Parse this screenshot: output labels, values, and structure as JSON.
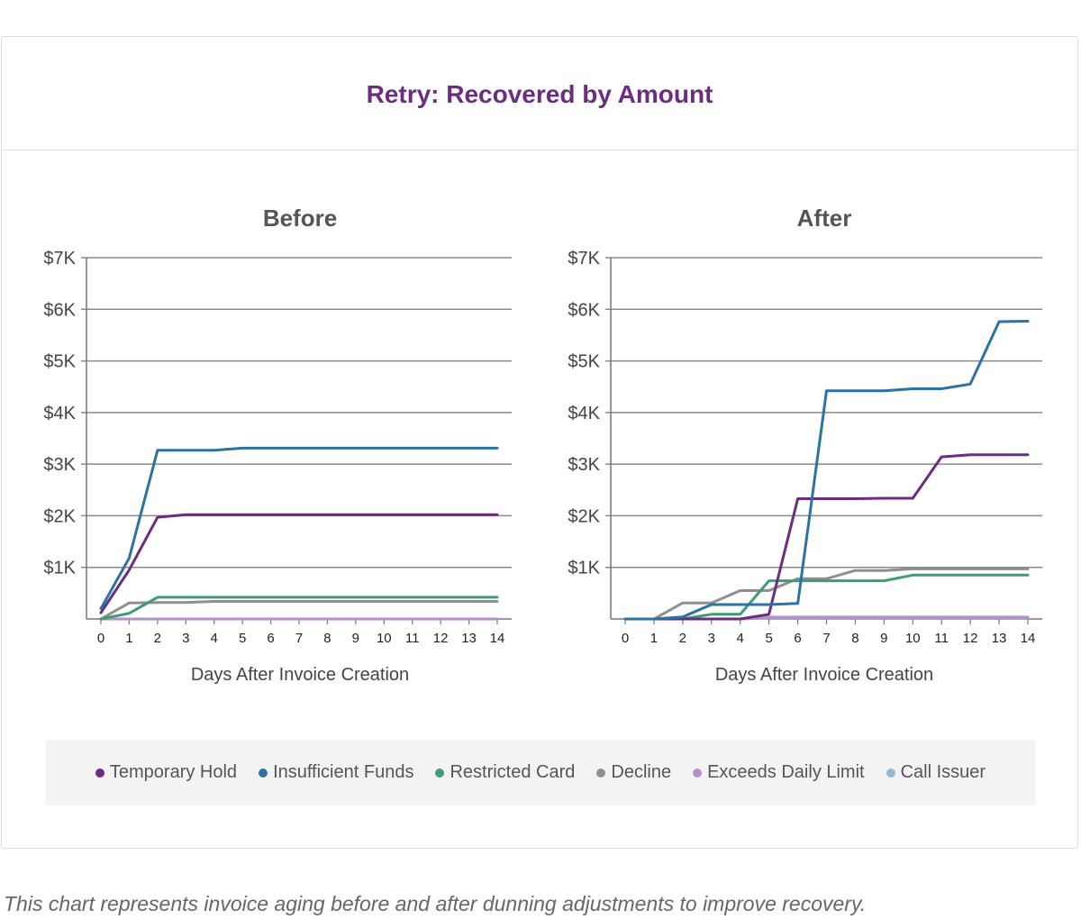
{
  "page": {
    "title": "Retry: Recovered by Amount",
    "caption": "This chart represents invoice aging before and after dunning adjustments to improve recovery."
  },
  "legend": [
    {
      "name": "Temporary Hold",
      "color": "#6b2c82"
    },
    {
      "name": "Insufficient Funds",
      "color": "#2b73a0"
    },
    {
      "name": "Restricted Card",
      "color": "#3f9b72"
    },
    {
      "name": "Decline",
      "color": "#8f8f8f"
    },
    {
      "name": "Exceeds Daily Limit",
      "color": "#b58fc9"
    },
    {
      "name": "Call Issuer",
      "color": "#8fb9d6"
    }
  ],
  "chart_data": [
    {
      "type": "line",
      "title": "Before",
      "xlabel": "Days After Invoice Creation",
      "ylabel": "",
      "x": [
        0,
        1,
        2,
        3,
        4,
        5,
        6,
        7,
        8,
        9,
        10,
        11,
        12,
        13,
        14
      ],
      "ylim": [
        0,
        7000
      ],
      "yticks": [
        1000,
        2000,
        3000,
        4000,
        5000,
        6000,
        7000
      ],
      "ytick_labels": [
        "$1K",
        "$2K",
        "$3K",
        "$4K",
        "$5K",
        "$6K",
        "$7K"
      ],
      "grid": true,
      "series": [
        {
          "name": "Temporary Hold",
          "color": "#6b2c82",
          "values": [
            120,
            950,
            1970,
            2020,
            2020,
            2020,
            2020,
            2020,
            2020,
            2020,
            2020,
            2020,
            2020,
            2020,
            2020
          ]
        },
        {
          "name": "Insufficient Funds",
          "color": "#2b73a0",
          "values": [
            200,
            1180,
            3270,
            3270,
            3270,
            3310,
            3310,
            3310,
            3310,
            3310,
            3310,
            3310,
            3310,
            3310,
            3310
          ]
        },
        {
          "name": "Restricted Card",
          "color": "#3f9b72",
          "values": [
            0,
            110,
            420,
            420,
            420,
            420,
            420,
            420,
            420,
            420,
            420,
            420,
            420,
            420,
            420
          ]
        },
        {
          "name": "Decline",
          "color": "#8f8f8f",
          "values": [
            0,
            310,
            320,
            320,
            340,
            340,
            340,
            340,
            340,
            340,
            340,
            340,
            340,
            340,
            340
          ]
        },
        {
          "name": "Exceeds Daily Limit",
          "color": "#b58fc9",
          "values": [
            0,
            0,
            0,
            0,
            0,
            0,
            0,
            0,
            0,
            0,
            0,
            0,
            0,
            0,
            0
          ]
        },
        {
          "name": "Call Issuer",
          "color": "#8fb9d6",
          "values": [
            0,
            0,
            0,
            0,
            0,
            0,
            0,
            0,
            0,
            0,
            0,
            0,
            0,
            0,
            0
          ]
        }
      ]
    },
    {
      "type": "line",
      "title": "After",
      "xlabel": "Days After Invoice Creation",
      "ylabel": "",
      "x": [
        0,
        1,
        2,
        3,
        4,
        5,
        6,
        7,
        8,
        9,
        10,
        11,
        12,
        13,
        14
      ],
      "ylim": [
        0,
        7000
      ],
      "yticks": [
        1000,
        2000,
        3000,
        4000,
        5000,
        6000,
        7000
      ],
      "ytick_labels": [
        "$1K",
        "$2K",
        "$3K",
        "$4K",
        "$5K",
        "$6K",
        "$7K"
      ],
      "grid": true,
      "series": [
        {
          "name": "Temporary Hold",
          "color": "#6b2c82",
          "values": [
            0,
            0,
            0,
            0,
            0,
            90,
            2330,
            2330,
            2330,
            2340,
            2340,
            3140,
            3180,
            3180,
            3180
          ]
        },
        {
          "name": "Insufficient Funds",
          "color": "#2b73a0",
          "values": [
            0,
            0,
            40,
            280,
            280,
            280,
            300,
            4420,
            4420,
            4420,
            4460,
            4460,
            4550,
            5760,
            5770
          ]
        },
        {
          "name": "Restricted Card",
          "color": "#3f9b72",
          "values": [
            0,
            0,
            0,
            90,
            90,
            740,
            740,
            740,
            740,
            740,
            850,
            850,
            850,
            850,
            850
          ]
        },
        {
          "name": "Decline",
          "color": "#8f8f8f",
          "values": [
            0,
            0,
            310,
            310,
            550,
            550,
            780,
            780,
            940,
            940,
            970,
            970,
            970,
            970,
            970
          ]
        },
        {
          "name": "Exceeds Daily Limit",
          "color": "#b58fc9",
          "values": [
            0,
            0,
            0,
            0,
            0,
            20,
            20,
            20,
            20,
            20,
            20,
            20,
            20,
            20,
            20
          ]
        },
        {
          "name": "Call Issuer",
          "color": "#8fb9d6",
          "values": [
            0,
            0,
            0,
            0,
            0,
            40,
            40,
            40,
            40,
            40,
            40,
            40,
            40,
            40,
            40
          ]
        }
      ]
    }
  ]
}
